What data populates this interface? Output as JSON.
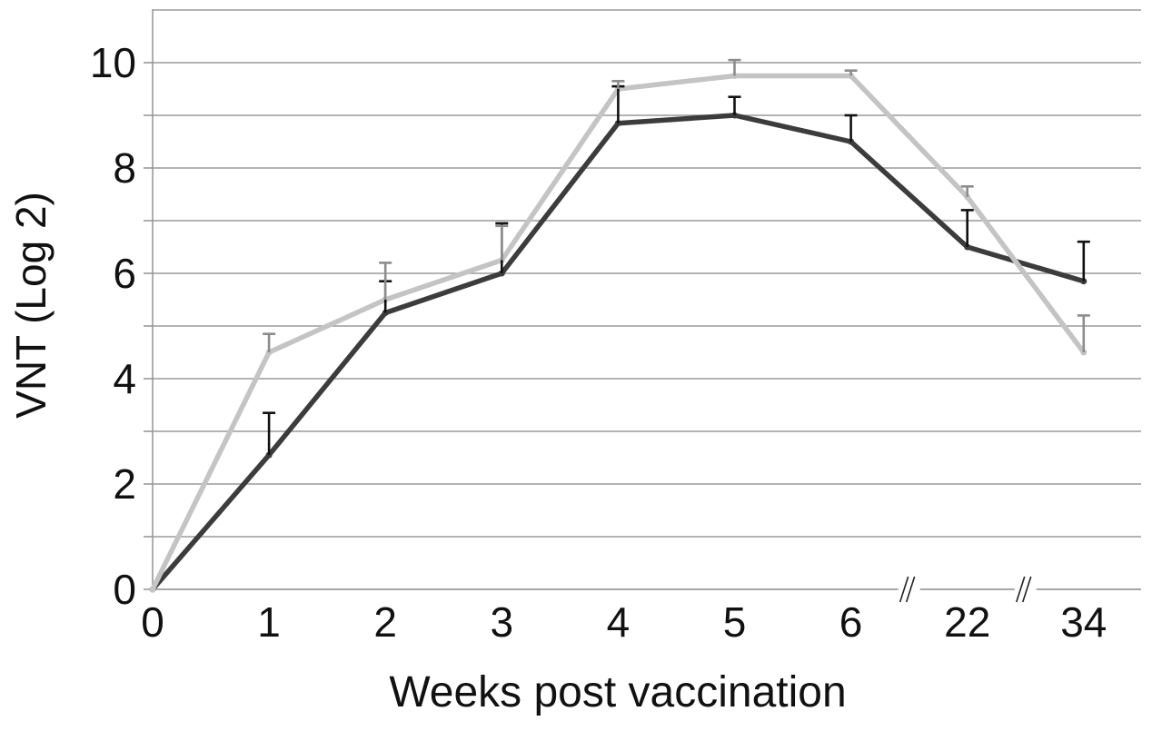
{
  "chart_data": {
    "type": "line",
    "title": "",
    "xlabel": "Weeks post vaccination",
    "ylabel": "VNT (Log 2)",
    "categories": [
      "0",
      "1",
      "2",
      "3",
      "4",
      "5",
      "6",
      "22",
      "34"
    ],
    "axis_breaks_after_index": [
      6,
      7
    ],
    "ylim": [
      0,
      10
    ],
    "y_ticks": [
      0,
      2,
      4,
      6,
      8,
      10
    ],
    "grid": true,
    "legend": "none",
    "series": [
      {
        "color": "#3c3c3c",
        "values": [
          0,
          2.55,
          5.25,
          6.0,
          8.85,
          9.0,
          8.5,
          6.5,
          5.85
        ],
        "error_upper": [
          0,
          3.35,
          5.85,
          6.95,
          9.55,
          9.35,
          9.0,
          7.2,
          6.6
        ]
      },
      {
        "color": "#c4c4c4",
        "values": [
          0,
          4.5,
          5.5,
          6.25,
          9.5,
          9.75,
          9.75,
          7.45,
          4.5
        ],
        "error_upper": [
          0,
          4.85,
          6.2,
          6.9,
          9.65,
          10.05,
          9.85,
          7.65,
          5.2
        ]
      }
    ]
  }
}
